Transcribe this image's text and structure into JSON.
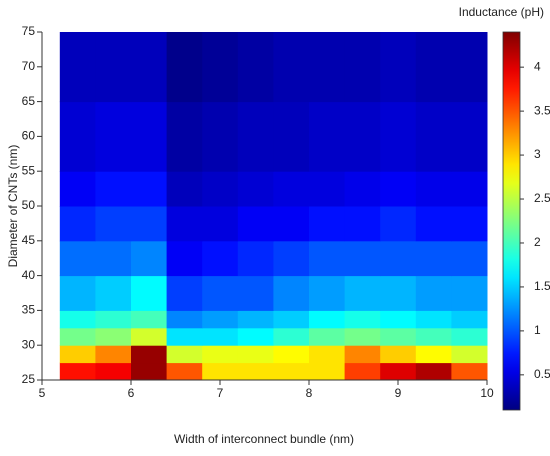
{
  "chart_data": {
    "type": "heatmap",
    "xlabel": "Width of interconnect bundle (nm)",
    "ylabel": "Diameter of CNTs (nm)",
    "colorbar_label": "Inductance (pH)",
    "colormap": "jet",
    "xlim": [
      5,
      10
    ],
    "xticks": [
      5,
      6,
      7,
      8,
      9,
      10
    ],
    "ylim": [
      25,
      75
    ],
    "yticks": [
      25,
      30,
      35,
      40,
      45,
      50,
      55,
      60,
      65,
      70,
      75
    ],
    "zlim": [
      0.1,
      4.4
    ],
    "zticks": [
      0.5,
      1,
      1.5,
      2,
      2.5,
      3,
      3.5,
      4
    ],
    "xbins": [
      5.2,
      5.6,
      6,
      6.4,
      6.8,
      7.2,
      7.6,
      8,
      8.4,
      8.8,
      9.2,
      9.6,
      10
    ],
    "ybins": [
      25,
      27.5,
      30,
      32.5,
      35,
      40,
      45,
      50,
      55,
      65,
      75
    ],
    "z": [
      [
        3.8,
        3.9,
        4.3,
        3.5,
        2.9,
        2.9,
        2.9,
        2.9,
        3.6,
        4.0,
        4.2,
        3.5
      ],
      [
        3.0,
        3.3,
        4.3,
        2.6,
        2.7,
        2.7,
        2.8,
        2.9,
        3.3,
        3.0,
        2.8,
        2.6
      ],
      [
        2.2,
        2.3,
        2.6,
        1.6,
        1.6,
        1.7,
        1.9,
        2.1,
        2.2,
        2.1,
        2.0,
        1.9
      ],
      [
        1.8,
        1.9,
        2.0,
        1.2,
        1.3,
        1.4,
        1.5,
        1.7,
        1.8,
        1.7,
        1.6,
        1.5
      ],
      [
        1.4,
        1.5,
        1.7,
        0.9,
        1.0,
        1.0,
        1.2,
        1.3,
        1.4,
        1.4,
        1.3,
        1.3
      ],
      [
        1.1,
        1.1,
        1.2,
        0.6,
        0.7,
        0.8,
        0.9,
        1.0,
        1.0,
        1.0,
        1.0,
        1.0
      ],
      [
        0.8,
        0.9,
        0.9,
        0.5,
        0.5,
        0.6,
        0.6,
        0.7,
        0.7,
        0.8,
        0.7,
        0.7
      ],
      [
        0.6,
        0.7,
        0.7,
        0.35,
        0.4,
        0.45,
        0.5,
        0.5,
        0.55,
        0.6,
        0.55,
        0.55
      ],
      [
        0.45,
        0.5,
        0.5,
        0.25,
        0.3,
        0.35,
        0.35,
        0.4,
        0.4,
        0.45,
        0.4,
        0.4
      ],
      [
        0.35,
        0.35,
        0.35,
        0.15,
        0.2,
        0.25,
        0.3,
        0.3,
        0.3,
        0.35,
        0.3,
        0.3
      ]
    ]
  }
}
